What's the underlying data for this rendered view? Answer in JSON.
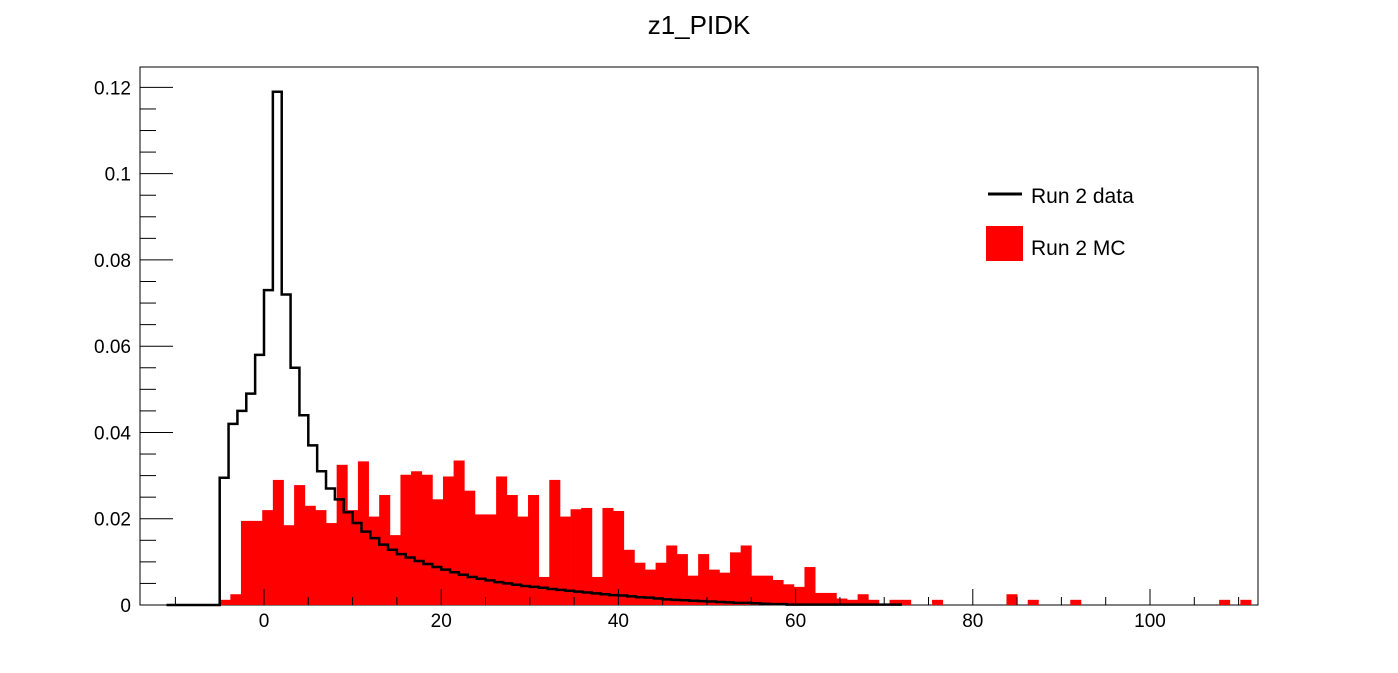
{
  "chart_data": {
    "type": "histogram",
    "title": "z1_PIDK",
    "xlabel": "",
    "ylabel": "",
    "xlim": [
      -12,
      112
    ],
    "ylim": [
      0,
      0.125
    ],
    "x_ticks": [
      0,
      20,
      40,
      60,
      80,
      100
    ],
    "x_tick_labels": [
      "0",
      "20",
      "40",
      "60",
      "80",
      "100"
    ],
    "y_ticks": [
      0,
      0.02,
      0.04,
      0.06,
      0.08,
      0.1,
      0.12
    ],
    "y_tick_labels": [
      "0",
      "0.02",
      "0.04",
      "0.06",
      "0.08",
      "0.1",
      "0.12"
    ],
    "legend_position": "top-right",
    "series": [
      {
        "name": "Run 2 data",
        "style": "step-line",
        "color": "#000000",
        "x_start": -11,
        "bin_width": 1,
        "values": [
          0,
          0,
          0,
          0,
          0,
          0,
          0.0295,
          0.042,
          0.045,
          0.049,
          0.058,
          0.073,
          0.119,
          0.072,
          0.055,
          0.044,
          0.037,
          0.031,
          0.027,
          0.0245,
          0.0215,
          0.019,
          0.017,
          0.0155,
          0.014,
          0.0128,
          0.0118,
          0.011,
          0.0102,
          0.0095,
          0.0088,
          0.0082,
          0.0076,
          0.007,
          0.0065,
          0.0061,
          0.0057,
          0.0053,
          0.005,
          0.0047,
          0.0044,
          0.0042,
          0.004,
          0.0037,
          0.0035,
          0.0033,
          0.0031,
          0.0029,
          0.0027,
          0.0025,
          0.0023,
          0.0022,
          0.002,
          0.0018,
          0.0017,
          0.0015,
          0.0013,
          0.0012,
          0.0011,
          0.001,
          0.0009,
          0.0008,
          0.0007,
          0.0006,
          0.0005,
          0.0005,
          0.0004,
          0.0003,
          0.0002,
          0.0002,
          0.0001,
          0.0001,
          0.0001,
          0.0001,
          0.0001,
          0.0001,
          0.0001,
          0.0001,
          0.0001,
          0.0001,
          0.0001,
          0.0001,
          0.0001
        ]
      },
      {
        "name": "Run 2 MC",
        "style": "filled-bars",
        "color": "#ff0000",
        "x_start": -5,
        "bin_width": 1.2,
        "values": [
          0.0012,
          0.0025,
          0.0195,
          0.0195,
          0.022,
          0.029,
          0.0185,
          0.0278,
          0.023,
          0.022,
          0.019,
          0.0325,
          0.022,
          0.0333,
          0.0205,
          0.0255,
          0.0162,
          0.0302,
          0.031,
          0.0302,
          0.0245,
          0.0298,
          0.0335,
          0.0265,
          0.021,
          0.021,
          0.0298,
          0.0255,
          0.0205,
          0.0255,
          0.0065,
          0.029,
          0.0205,
          0.0222,
          0.0225,
          0.0065,
          0.0225,
          0.0218,
          0.0128,
          0.0098,
          0.0082,
          0.0098,
          0.0138,
          0.0118,
          0.0068,
          0.0118,
          0.0082,
          0.0075,
          0.0122,
          0.0138,
          0.0068,
          0.0068,
          0.0058,
          0.0048,
          0.0042,
          0.0088,
          0.0028,
          0.0028,
          0.0015,
          0.0012,
          0.0025,
          0.0012,
          0.0,
          0.0012,
          0.0012,
          0.0,
          0.0,
          0.0012,
          0.0,
          0.0,
          0.0,
          0.0,
          0.0,
          0.0,
          0.0025,
          0.0,
          0.0012,
          0.0,
          0.0,
          0.0,
          0.0012,
          0.0,
          0.0,
          0.0,
          0.0,
          0.0,
          0.0,
          0.0,
          0.0,
          0.0,
          0.0,
          0.0,
          0.0,
          0.0,
          0.0012,
          0.0,
          0.0012
        ]
      }
    ]
  }
}
